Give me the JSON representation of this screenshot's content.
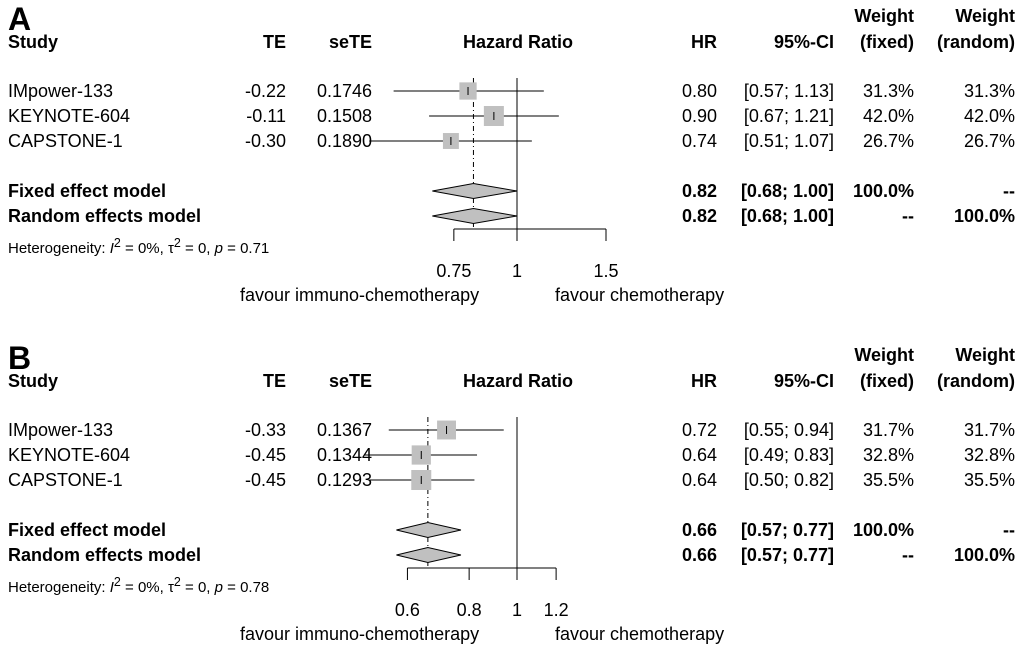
{
  "headers": {
    "study": "Study",
    "te": "TE",
    "sete": "seTE",
    "hazard_ratio": "Hazard Ratio",
    "hr": "HR",
    "ci": "95%-CI",
    "weight": "Weight",
    "fixed": "(fixed)",
    "random": "(random)"
  },
  "favour_left": "favour immuno-chemotherapy",
  "favour_right": "favour chemotherapy",
  "panels": [
    {
      "label": "A",
      "studies": [
        {
          "name": "IMpower-133",
          "te": "-0.22",
          "sete": "0.1746",
          "hr": "0.80",
          "ci": "[0.57; 1.13]",
          "w_fixed": "31.3%",
          "w_random": "31.3%"
        },
        {
          "name": "KEYNOTE-604",
          "te": "-0.11",
          "sete": "0.1508",
          "hr": "0.90",
          "ci": "[0.67; 1.21]",
          "w_fixed": "42.0%",
          "w_random": "42.0%"
        },
        {
          "name": "CAPSTONE-1",
          "te": "-0.30",
          "sete": "0.1890",
          "hr": "0.74",
          "ci": "[0.51; 1.07]",
          "w_fixed": "26.7%",
          "w_random": "26.7%"
        }
      ],
      "fixed": {
        "name": "Fixed effect model",
        "hr": "0.82",
        "ci": "[0.68; 1.00]",
        "w_fixed": "100.0%",
        "w_random": "--"
      },
      "random": {
        "name": "Random effects model",
        "hr": "0.82",
        "ci": "[0.68; 1.00]",
        "w_fixed": "--",
        "w_random": "100.0%"
      },
      "heterogeneity": {
        "prefix": "Heterogeneity: ",
        "i2_symbol": "I",
        "i2_exp": "2",
        "i2_value": " = 0%, ",
        "tau_symbol": "τ",
        "tau_exp": "2",
        "tau_value": " = 0, ",
        "p_symbol": "p",
        "p_value": " = 0.71"
      }
    },
    {
      "label": "B",
      "studies": [
        {
          "name": "IMpower-133",
          "te": "-0.33",
          "sete": "0.1367",
          "hr": "0.72",
          "ci": "[0.55; 0.94]",
          "w_fixed": "31.7%",
          "w_random": "31.7%"
        },
        {
          "name": "KEYNOTE-604",
          "te": "-0.45",
          "sete": "0.1344",
          "hr": "0.64",
          "ci": "[0.49; 0.83]",
          "w_fixed": "32.8%",
          "w_random": "32.8%"
        },
        {
          "name": "CAPSTONE-1",
          "te": "-0.45",
          "sete": "0.1293",
          "hr": "0.64",
          "ci": "[0.50; 0.82]",
          "w_fixed": "35.5%",
          "w_random": "35.5%"
        }
      ],
      "fixed": {
        "name": "Fixed effect model",
        "hr": "0.66",
        "ci": "[0.57; 0.77]",
        "w_fixed": "100.0%",
        "w_random": "--"
      },
      "random": {
        "name": "Random effects model",
        "hr": "0.66",
        "ci": "[0.57; 0.77]",
        "w_fixed": "--",
        "w_random": "100.0%"
      },
      "heterogeneity": {
        "prefix": "Heterogeneity: ",
        "i2_symbol": "I",
        "i2_exp": "2",
        "i2_value": " = 0%, ",
        "tau_symbol": "τ",
        "tau_exp": "2",
        "tau_value": " = 0, ",
        "p_symbol": "p",
        "p_value": " = 0.78"
      }
    }
  ],
  "chart_data": [
    {
      "type": "forest",
      "title": "A",
      "xlabel": "Hazard Ratio",
      "x_scale": "log",
      "null_value": 1,
      "xticks": [
        0.75,
        1,
        1.5
      ],
      "xtick_labels": [
        "0.75",
        "1",
        "1.5"
      ],
      "studies": [
        {
          "name": "IMpower-133",
          "hr": 0.8,
          "ci_low": 0.57,
          "ci_high": 1.13,
          "weight_fixed": 31.3
        },
        {
          "name": "KEYNOTE-604",
          "hr": 0.9,
          "ci_low": 0.67,
          "ci_high": 1.21,
          "weight_fixed": 42.0
        },
        {
          "name": "CAPSTONE-1",
          "hr": 0.74,
          "ci_low": 0.51,
          "ci_high": 1.07,
          "weight_fixed": 26.7
        }
      ],
      "fixed": {
        "hr": 0.82,
        "ci_low": 0.68,
        "ci_high": 1.0
      },
      "random": {
        "hr": 0.82,
        "ci_low": 0.68,
        "ci_high": 1.0
      }
    },
    {
      "type": "forest",
      "title": "B",
      "xlabel": "Hazard Ratio",
      "x_scale": "log",
      "null_value": 1,
      "xticks": [
        0.6,
        0.8,
        1,
        1.2
      ],
      "xtick_labels": [
        "0.6",
        "0.8",
        "1",
        "1.2"
      ],
      "studies": [
        {
          "name": "IMpower-133",
          "hr": 0.72,
          "ci_low": 0.55,
          "ci_high": 0.94,
          "weight_fixed": 31.7
        },
        {
          "name": "KEYNOTE-604",
          "hr": 0.64,
          "ci_low": 0.49,
          "ci_high": 0.83,
          "weight_fixed": 32.8
        },
        {
          "name": "CAPSTONE-1",
          "hr": 0.64,
          "ci_low": 0.5,
          "ci_high": 0.82,
          "weight_fixed": 35.5
        }
      ],
      "fixed": {
        "hr": 0.66,
        "ci_low": 0.57,
        "ci_high": 0.77
      },
      "random": {
        "hr": 0.66,
        "ci_low": 0.57,
        "ci_high": 0.77
      }
    }
  ],
  "colors": {
    "box_fill": "#c0c0c0",
    "diamond_fill": "#c0c0c0",
    "line": "#000000"
  }
}
